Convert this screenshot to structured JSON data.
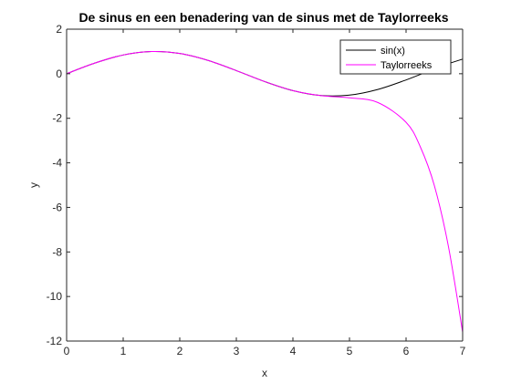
{
  "chart_data": {
    "type": "line",
    "title": "De sinus en een benadering van de sinus met de Taylorreeks",
    "xlabel": "x",
    "ylabel": "y",
    "xlim": [
      0,
      7
    ],
    "ylim": [
      -12,
      2
    ],
    "x_ticks": [
      0,
      1,
      2,
      3,
      4,
      5,
      6,
      7
    ],
    "y_ticks": [
      2,
      0,
      -2,
      -4,
      -6,
      -8,
      -10,
      -12
    ],
    "grid": false,
    "legend_position": "top-right",
    "x": [
      0,
      0.5,
      1,
      1.5,
      2,
      2.5,
      3,
      3.5,
      4,
      4.5,
      5,
      5.5,
      6,
      6.25,
      6.5,
      6.75,
      7
    ],
    "series": [
      {
        "name": "sin(x)",
        "color": "#000000",
        "values": [
          0,
          0.479,
          0.841,
          0.997,
          0.909,
          0.598,
          0.141,
          -0.351,
          -0.757,
          -0.978,
          -0.959,
          -0.706,
          -0.279,
          -0.033,
          0.215,
          0.451,
          0.657
        ]
      },
      {
        "name": "Taylorreeks",
        "color": "#ff00ff",
        "values": [
          0,
          0.479,
          0.841,
          0.997,
          0.909,
          0.598,
          0.141,
          -0.351,
          -0.757,
          -0.983,
          -1.082,
          -1.29,
          -2.18,
          -3.27,
          -5.02,
          -7.77,
          -11.6
        ]
      }
    ]
  }
}
